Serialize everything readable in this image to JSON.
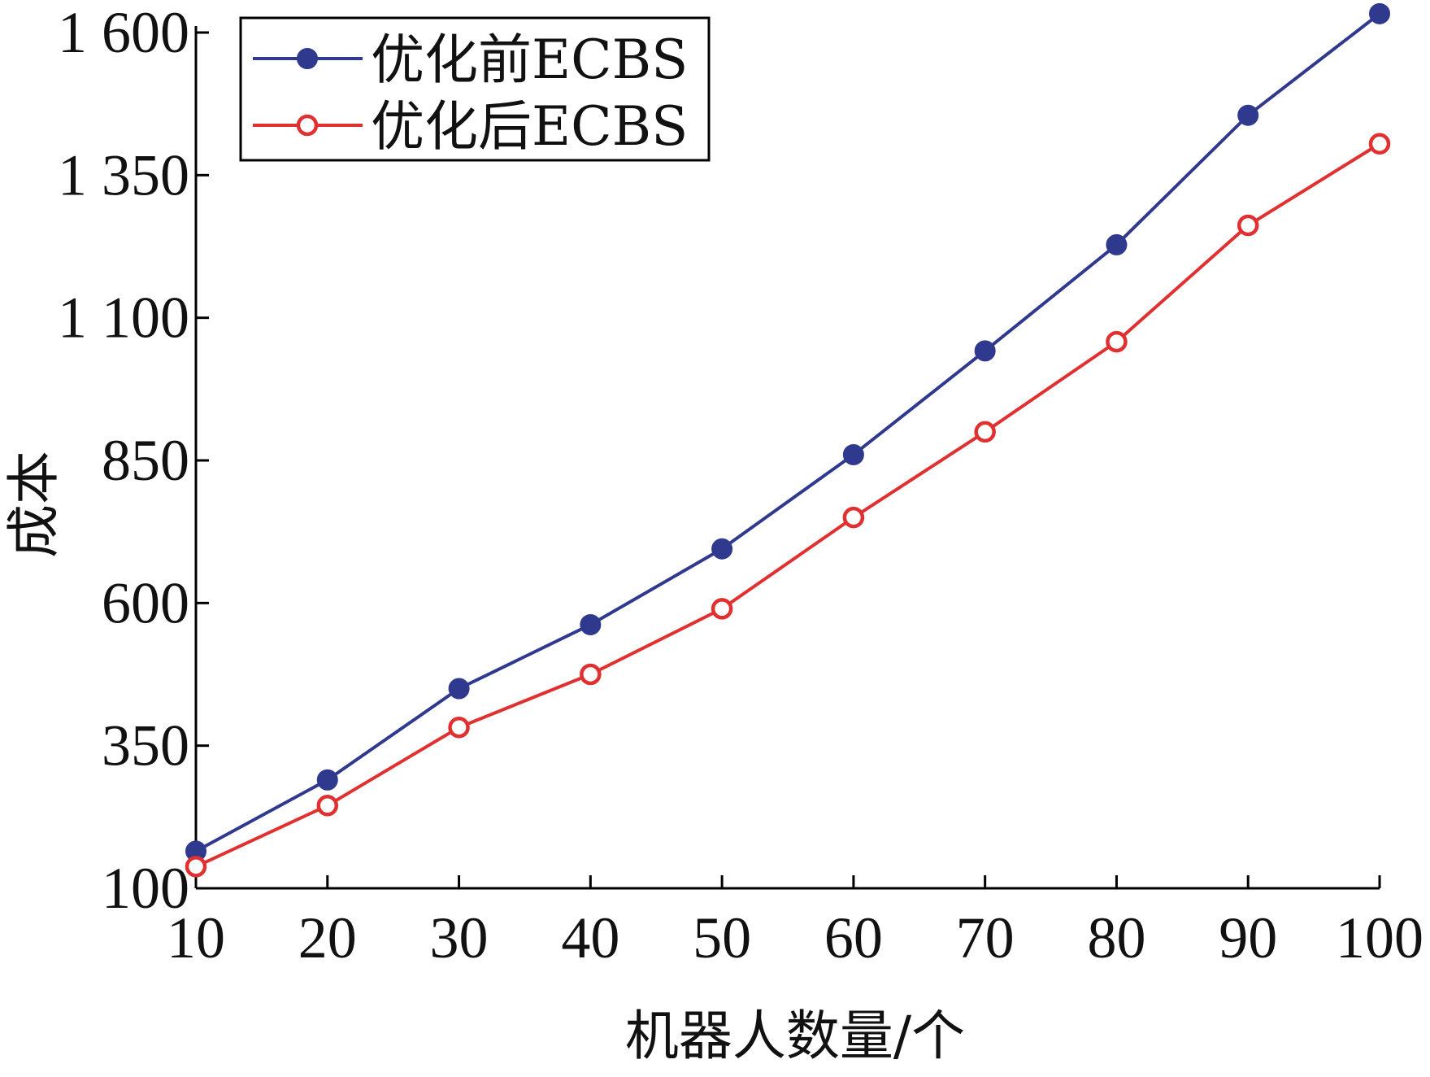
{
  "chart_data": {
    "type": "line",
    "title": "",
    "xlabel": "机器人数量/个",
    "ylabel": "成本",
    "x": [
      10,
      20,
      30,
      40,
      50,
      60,
      70,
      80,
      90,
      100
    ],
    "x_ticks": [
      "10",
      "20",
      "30",
      "40",
      "50",
      "60",
      "70",
      "80",
      "90",
      "100"
    ],
    "y_ticks": [
      {
        "value": 100,
        "label": "100"
      },
      {
        "value": 350,
        "label": "350"
      },
      {
        "value": 600,
        "label": "600"
      },
      {
        "value": 850,
        "label": "850"
      },
      {
        "value": 1100,
        "label": "1 100"
      },
      {
        "value": 1350,
        "label": "1 350"
      },
      {
        "value": 1600,
        "label": "1 600"
      }
    ],
    "xlim": [
      10,
      100
    ],
    "ylim": [
      100,
      1600
    ],
    "grid": false,
    "legend_position": "top-left",
    "series": [
      {
        "name": "优化前ECBS",
        "color": "#2f3a8f",
        "marker": "filled-circle",
        "values": [
          165,
          290,
          450,
          562,
          695,
          860,
          1042,
          1228,
          1455,
          1633
        ]
      },
      {
        "name": "优化后ECBS",
        "color": "#e03030",
        "marker": "open-circle",
        "values": [
          138,
          245,
          382,
          475,
          590,
          750,
          900,
          1058,
          1262,
          1405
        ]
      }
    ]
  }
}
